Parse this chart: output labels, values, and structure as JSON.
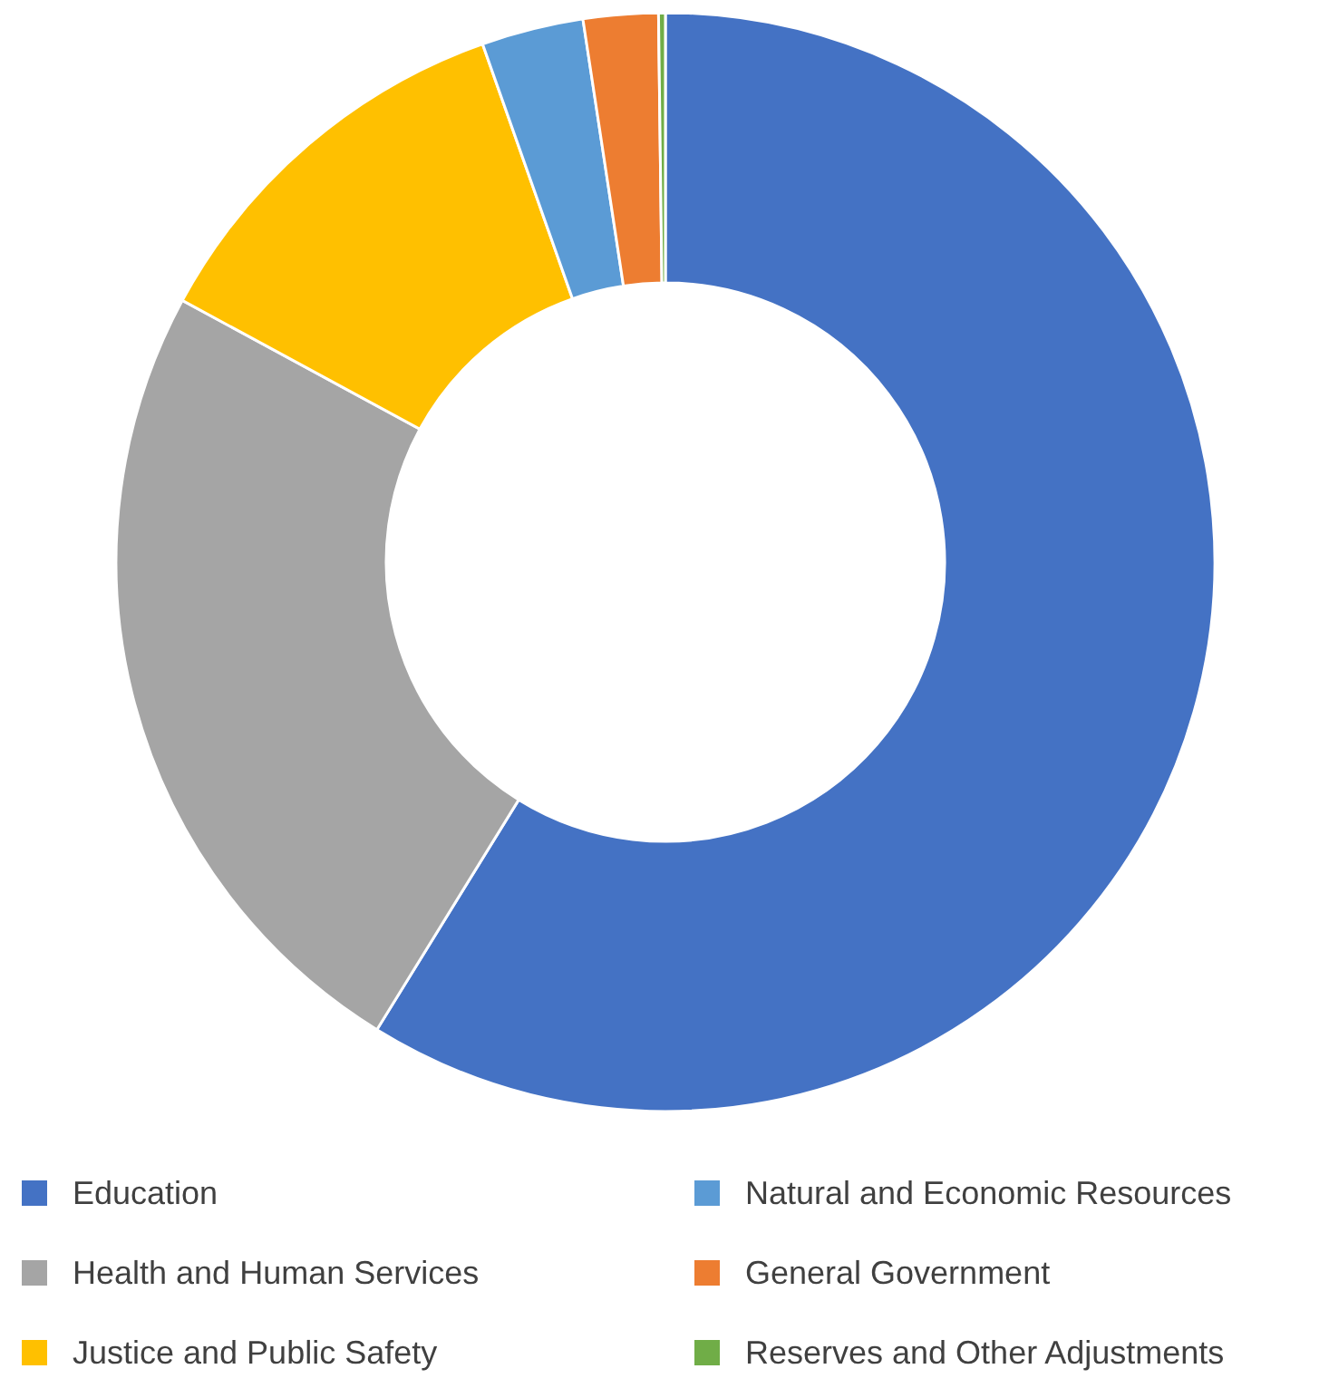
{
  "chart_data": {
    "type": "donut",
    "categories": [
      "Education",
      "Health and Human Services",
      "Justice and Public Safety",
      "Natural and Economic Resources",
      "General Government",
      "Reserves and Other Adjustments"
    ],
    "values": [
      58.8,
      24.1,
      11.7,
      3.0,
      2.2,
      0.2
    ],
    "colors": [
      "#4472c4",
      "#a5a5a5",
      "#ffc000",
      "#5b9bd5",
      "#ed7d31",
      "#70ad47"
    ],
    "legend": "bottom"
  }
}
